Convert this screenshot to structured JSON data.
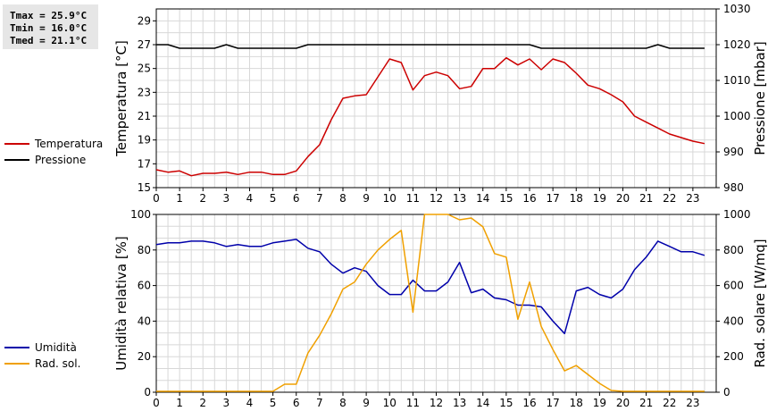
{
  "stats": {
    "tmax": "Tmax = 25.9°C",
    "tmin": "Tmin = 16.0°C",
    "tmed": "Tmed = 21.1°C"
  },
  "legend_top": [
    {
      "label": "Temperatura",
      "color": "#cc0000"
    },
    {
      "label": "Pressione",
      "color": "#000000"
    }
  ],
  "legend_bottom": [
    {
      "label": "Umidità",
      "color": "#0000aa"
    },
    {
      "label": "Rad. sol.",
      "color": "#f0a000"
    }
  ],
  "chart_data": [
    {
      "type": "line",
      "ylabel": "Temperatura [°C]",
      "ylabel_right": "Pressione [mbar]",
      "xlim": [
        0,
        24
      ],
      "xticks": [
        "0",
        "1",
        "2",
        "3",
        "4",
        "5",
        "6",
        "7",
        "8",
        "9",
        "10",
        "11",
        "12",
        "13",
        "14",
        "15",
        "16",
        "17",
        "18",
        "19",
        "20",
        "21",
        "22",
        "23"
      ],
      "ylim": [
        15,
        30
      ],
      "yticks": [
        "15",
        "17",
        "19",
        "21",
        "23",
        "25",
        "27",
        "29"
      ],
      "ylim_right": [
        980,
        1030
      ],
      "yticks_right": [
        "980",
        "990",
        "1000",
        "1010",
        "1020",
        "1030"
      ],
      "grid": true,
      "series": [
        {
          "name": "Temperatura",
          "color": "#cc0000",
          "axis": "left",
          "x": [
            0,
            0.5,
            1,
            1.5,
            2,
            2.5,
            3,
            3.5,
            4,
            4.5,
            5,
            5.5,
            6,
            6.5,
            7,
            7.5,
            8,
            8.5,
            9,
            9.5,
            10,
            10.5,
            11,
            11.5,
            12,
            12.5,
            13,
            13.5,
            14,
            14.5,
            15,
            15.5,
            16,
            16.5,
            17,
            17.5,
            18,
            18.5,
            19,
            19.5,
            20,
            20.5,
            21,
            21.5,
            22,
            22.5,
            23,
            23.5
          ],
          "values": [
            16.5,
            16.3,
            16.4,
            16.0,
            16.2,
            16.2,
            16.3,
            16.1,
            16.3,
            16.3,
            16.1,
            16.1,
            16.4,
            17.6,
            18.6,
            20.7,
            22.5,
            22.7,
            22.8,
            24.3,
            25.8,
            25.5,
            23.2,
            24.4,
            24.7,
            24.4,
            23.3,
            23.5,
            25.0,
            25.0,
            25.9,
            25.3,
            25.8,
            24.9,
            25.8,
            25.5,
            24.6,
            23.6,
            23.3,
            22.8,
            22.2,
            21.0,
            20.5,
            20.0,
            19.5,
            19.2,
            18.9,
            18.7
          ]
        },
        {
          "name": "Pressione",
          "color": "#000000",
          "axis": "right",
          "x": [
            0,
            0.5,
            1,
            1.5,
            2,
            2.5,
            3,
            3.5,
            4,
            4.5,
            5,
            5.5,
            6,
            6.5,
            7,
            7.5,
            8,
            8.5,
            9,
            9.5,
            10,
            10.5,
            11,
            11.5,
            12,
            12.5,
            13,
            13.5,
            14,
            14.5,
            15,
            15.5,
            16,
            16.5,
            17,
            17.5,
            18,
            18.5,
            19,
            19.5,
            20,
            20.5,
            21,
            21.5,
            22,
            22.5,
            23,
            23.5
          ],
          "values": [
            1020,
            1020,
            1019,
            1019,
            1019,
            1019,
            1020,
            1019,
            1019,
            1019,
            1019,
            1019,
            1019,
            1020,
            1020,
            1020,
            1020,
            1020,
            1020,
            1020,
            1020,
            1020,
            1020,
            1020,
            1020,
            1020,
            1020,
            1020,
            1020,
            1020,
            1020,
            1020,
            1020,
            1019,
            1019,
            1019,
            1019,
            1019,
            1019,
            1019,
            1019,
            1019,
            1019,
            1020,
            1019,
            1019,
            1019,
            1019
          ]
        }
      ]
    },
    {
      "type": "line",
      "ylabel": "Umidità relativa [%]",
      "ylabel_right": "Rad. solare [W/mq]",
      "xlim": [
        0,
        24
      ],
      "xticks": [
        "0",
        "1",
        "2",
        "3",
        "4",
        "5",
        "6",
        "7",
        "8",
        "9",
        "10",
        "11",
        "12",
        "13",
        "14",
        "15",
        "16",
        "17",
        "18",
        "19",
        "20",
        "21",
        "22",
        "23"
      ],
      "ylim": [
        0,
        100
      ],
      "yticks": [
        "0",
        "20",
        "40",
        "60",
        "80",
        "100"
      ],
      "ylim_right": [
        0,
        1000
      ],
      "yticks_right": [
        "0",
        "200",
        "400",
        "600",
        "800",
        "1000"
      ],
      "grid": true,
      "series": [
        {
          "name": "Umidità",
          "color": "#0000aa",
          "axis": "left",
          "x": [
            0,
            0.5,
            1,
            1.5,
            2,
            2.5,
            3,
            3.5,
            4,
            4.5,
            5,
            5.5,
            6,
            6.5,
            7,
            7.5,
            8,
            8.5,
            9,
            9.5,
            10,
            10.5,
            11,
            11.5,
            12,
            12.5,
            13,
            13.5,
            14,
            14.5,
            15,
            15.5,
            16,
            16.5,
            17,
            17.5,
            18,
            18.5,
            19,
            19.5,
            20,
            20.5,
            21,
            21.5,
            22,
            22.5,
            23,
            23.5
          ],
          "values": [
            83,
            84,
            84,
            85,
            85,
            84,
            82,
            83,
            82,
            82,
            84,
            85,
            86,
            81,
            79,
            72,
            67,
            70,
            68,
            60,
            55,
            55,
            63,
            57,
            57,
            62,
            73,
            56,
            58,
            53,
            52,
            49,
            49,
            48,
            40,
            33,
            57,
            59,
            55,
            53,
            58,
            69,
            76,
            85,
            82,
            79,
            79,
            77
          ]
        },
        {
          "name": "Rad. sol.",
          "color": "#f0a000",
          "axis": "right",
          "x": [
            0,
            0.5,
            1,
            1.5,
            2,
            2.5,
            3,
            3.5,
            4,
            4.5,
            5,
            5.5,
            6,
            6.5,
            7,
            7.5,
            8,
            8.5,
            9,
            9.5,
            10,
            10.5,
            11,
            11.5,
            12,
            12.5,
            13,
            13.5,
            14,
            14.5,
            15,
            15.5,
            16,
            16.5,
            17,
            17.5,
            18,
            18.5,
            19,
            19.5,
            20,
            20.5,
            21,
            21.5,
            22,
            22.5,
            23,
            23.5
          ],
          "values": [
            5,
            5,
            5,
            5,
            5,
            5,
            5,
            5,
            5,
            5,
            5,
            45,
            45,
            220,
            320,
            440,
            580,
            620,
            720,
            800,
            860,
            910,
            450,
            1010,
            1000,
            1020,
            970,
            980,
            930,
            780,
            760,
            410,
            620,
            370,
            240,
            120,
            150,
            100,
            50,
            10,
            5,
            5,
            5,
            5,
            5,
            5,
            5,
            5
          ]
        }
      ]
    }
  ]
}
